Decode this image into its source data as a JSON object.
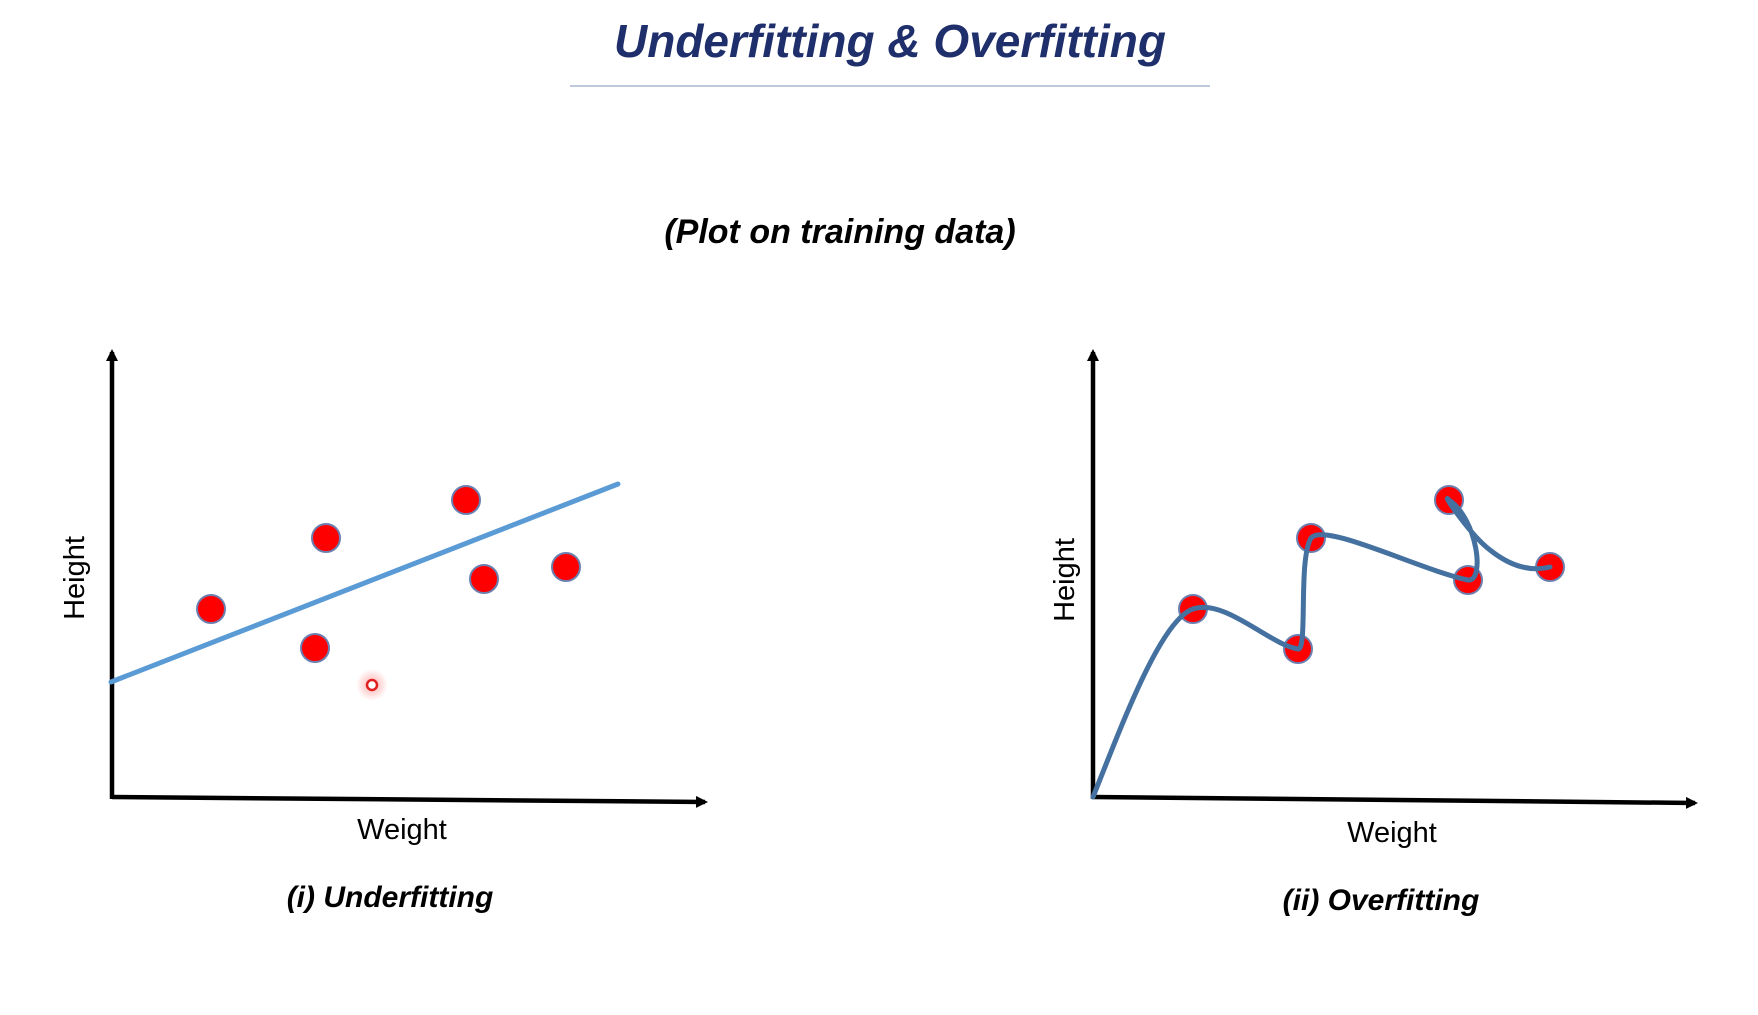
{
  "slide": {
    "title": "Underfitting & Overfitting",
    "subtitle": "(Plot on training data)"
  },
  "panels": [
    {
      "id": "underfitting",
      "caption": "(i) Underfitting",
      "x_axis_label": "Weight",
      "y_axis_label": "Height",
      "fit": "straight-line"
    },
    {
      "id": "overfitting",
      "caption": "(ii) Overfitting",
      "x_axis_label": "Weight",
      "y_axis_label": "Height",
      "fit": "wiggly-curve-through-all-points"
    }
  ],
  "colors": {
    "title": "#1f2f6b",
    "title_rule": "#a9b7d2",
    "point_fill": "#ff0000",
    "point_stroke": "#6b7fb0",
    "underfit_line": "#5b9bd5",
    "overfit_curve": "#44719f",
    "axis": "#000000",
    "cursor": "#e02020"
  },
  "icons": {
    "cursor": "mouse-cursor-marker-icon"
  }
}
